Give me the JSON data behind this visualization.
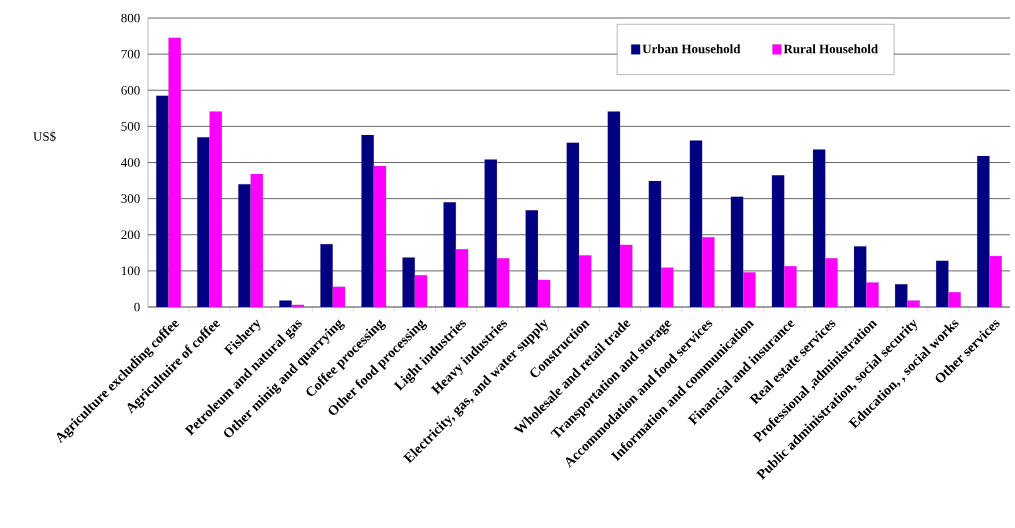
{
  "chart_data": {
    "type": "bar",
    "ylabel": "US$",
    "categories": [
      "Agriculture excluding coffee",
      "Agricultuire of coffee",
      "Fishery",
      "Petroleum and natural gas",
      "Other minig and quarrying",
      "Coffee processing",
      "Other food processing",
      "Light industries",
      "Heavy industries",
      "Electricity, gas, and water supply",
      "Construction",
      "Wholesale and retail trade",
      "Transportation and storage",
      "Accommodation and food services",
      "Information and communication",
      "Financial and insurance",
      "Real estate services",
      "Professional ,administration",
      "Public administration, social security",
      "Education, , social works",
      "Other services"
    ],
    "series": [
      {
        "name": "Urban Household",
        "color": "#000080",
        "values": [
          585,
          470,
          340,
          18,
          174,
          476,
          137,
          290,
          408,
          268,
          455,
          541,
          349,
          461,
          305,
          365,
          436,
          168,
          63,
          128,
          418
        ]
      },
      {
        "name": "Rural Household",
        "color": "#ff00ff",
        "values": [
          745,
          541,
          368,
          6,
          56,
          390,
          88,
          160,
          135,
          75,
          143,
          172,
          109,
          193,
          96,
          113,
          135,
          68,
          18,
          41,
          141
        ]
      }
    ],
    "ylim": [
      0,
      800
    ],
    "yticks": [
      0,
      100,
      200,
      300,
      400,
      500,
      600,
      700,
      800
    ],
    "grid": "y",
    "legend": "top right"
  }
}
